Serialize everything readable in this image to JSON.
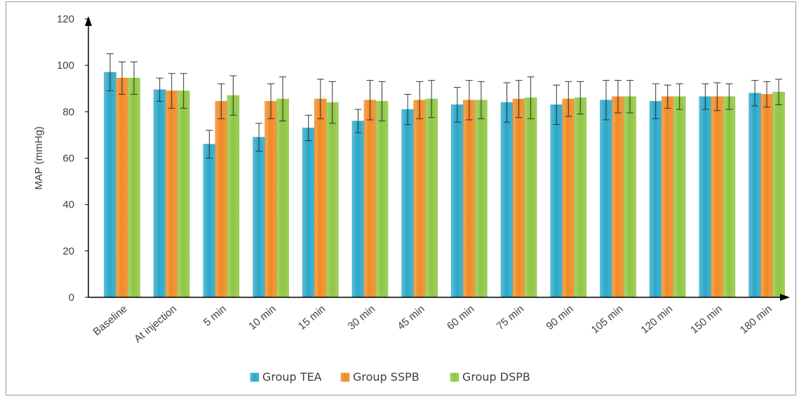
{
  "chart_data": {
    "type": "bar",
    "title": "",
    "xlabel": "",
    "ylabel": "MAP (mmHg)",
    "ylim": [
      0,
      120
    ],
    "yticks": [
      0,
      20,
      40,
      60,
      80,
      100,
      120
    ],
    "grid": false,
    "legend_position": "bottom",
    "error_bars": true,
    "categories": [
      "Baseline",
      "At injection",
      "5 min",
      "10 min",
      "15 min",
      "30 min",
      "45 min",
      "60 min",
      "75 min",
      "90 min",
      "105 min",
      "120 min",
      "150 min",
      "180 min"
    ],
    "series": [
      {
        "name": "Group TEA",
        "color": "#2aa8c9",
        "values": [
          97,
          89.5,
          66,
          69,
          73,
          76,
          81,
          83,
          84,
          83,
          85,
          84.5,
          86.5,
          88
        ],
        "errors": [
          8,
          5,
          6,
          6,
          5.5,
          5,
          6.5,
          7.5,
          8.5,
          8.5,
          8.5,
          7.5,
          5.5,
          5.5
        ]
      },
      {
        "name": "Group SSPB",
        "color": "#f08a24",
        "values": [
          94.5,
          89,
          84.5,
          84.5,
          85.5,
          85,
          85,
          85,
          85.5,
          85.5,
          86.5,
          86.5,
          86.5,
          87.5
        ],
        "errors": [
          7,
          7.5,
          7.5,
          7.5,
          8.5,
          8.5,
          8,
          8.5,
          8,
          7.5,
          7,
          5,
          6,
          5.5
        ]
      },
      {
        "name": "Group DSPB",
        "color": "#8fc641",
        "values": [
          94.5,
          89,
          87,
          85.5,
          84,
          84.5,
          85.5,
          85,
          86,
          86,
          86.5,
          86.5,
          86.5,
          88.5
        ],
        "errors": [
          7,
          7.5,
          8.5,
          9.5,
          9,
          8.5,
          8,
          8,
          9,
          7,
          7,
          5.5,
          5.5,
          5.5
        ]
      }
    ]
  }
}
